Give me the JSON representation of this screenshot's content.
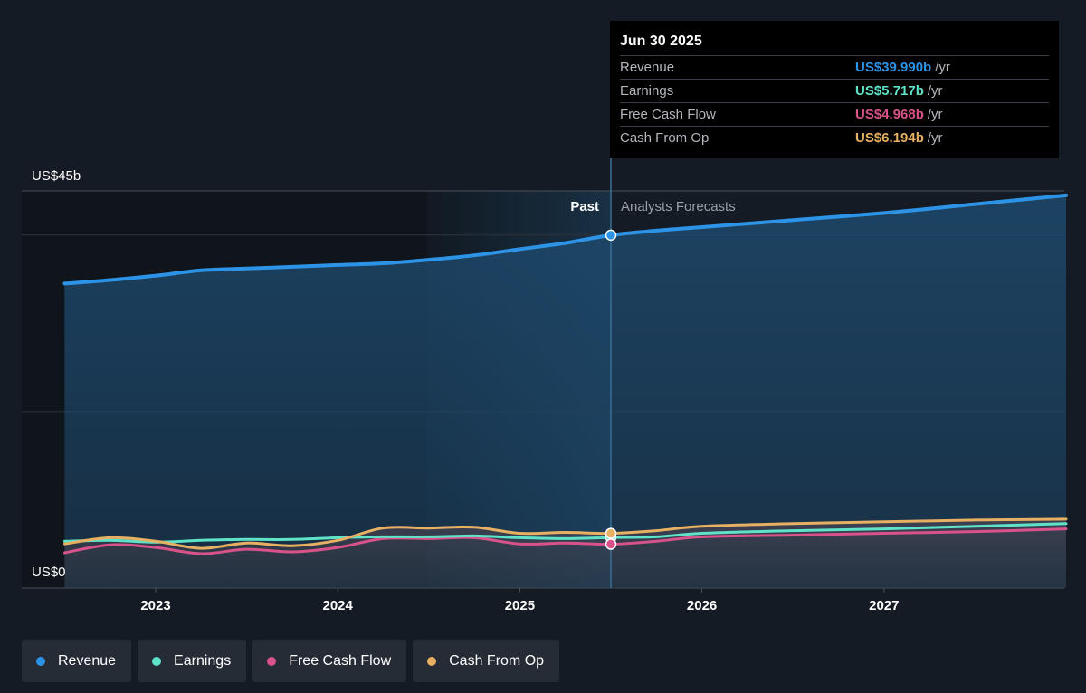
{
  "chart_data": {
    "type": "area",
    "x_unit": "year",
    "y_unit": "US$ billions",
    "ylim": [
      0,
      45
    ],
    "xlim": [
      2022.75,
      2028.0
    ],
    "y_tick_labels": [
      {
        "value": 45,
        "label": "US$45b"
      },
      {
        "value": 0,
        "label": "US$0"
      }
    ],
    "gridlines_y": [
      45,
      40,
      20
    ],
    "x_ticks": [
      2023,
      2024,
      2025,
      2026,
      2027
    ],
    "x_tick_labels": [
      "2023",
      "2024",
      "2025",
      "2026",
      "2027"
    ],
    "divider_x": 2025.5,
    "past_label": "Past",
    "forecast_label": "Analysts Forecasts",
    "series": [
      {
        "name": "Revenue",
        "color": "#2d93e6",
        "points": [
          [
            2022.5,
            34.5
          ],
          [
            2022.75,
            34.9
          ],
          [
            2023.0,
            35.4
          ],
          [
            2023.25,
            36.0
          ],
          [
            2023.5,
            36.2
          ],
          [
            2023.75,
            36.4
          ],
          [
            2024.0,
            36.6
          ],
          [
            2024.25,
            36.8
          ],
          [
            2024.5,
            37.2
          ],
          [
            2024.75,
            37.7
          ],
          [
            2025.0,
            38.4
          ],
          [
            2025.25,
            39.1
          ],
          [
            2025.5,
            39.99
          ],
          [
            2025.75,
            40.5
          ],
          [
            2026.0,
            40.9
          ],
          [
            2026.5,
            41.7
          ],
          [
            2027.0,
            42.5
          ],
          [
            2027.5,
            43.5
          ],
          [
            2028.0,
            44.5
          ]
        ]
      },
      {
        "name": "Earnings",
        "color": "#5fe3c8",
        "points": [
          [
            2022.5,
            5.3
          ],
          [
            2022.75,
            5.4
          ],
          [
            2023.0,
            5.2
          ],
          [
            2023.25,
            5.4
          ],
          [
            2023.5,
            5.5
          ],
          [
            2023.75,
            5.5
          ],
          [
            2024.0,
            5.7
          ],
          [
            2024.25,
            5.8
          ],
          [
            2024.5,
            5.8
          ],
          [
            2024.75,
            5.9
          ],
          [
            2025.0,
            5.7
          ],
          [
            2025.25,
            5.6
          ],
          [
            2025.5,
            5.717
          ],
          [
            2025.75,
            5.8
          ],
          [
            2026.0,
            6.2
          ],
          [
            2026.5,
            6.5
          ],
          [
            2027.0,
            6.7
          ],
          [
            2027.5,
            7.0
          ],
          [
            2028.0,
            7.3
          ]
        ]
      },
      {
        "name": "Free Cash Flow",
        "color": "#d9538a",
        "points": [
          [
            2022.5,
            4.0
          ],
          [
            2022.75,
            4.9
          ],
          [
            2023.0,
            4.6
          ],
          [
            2023.25,
            3.9
          ],
          [
            2023.5,
            4.4
          ],
          [
            2023.75,
            4.1
          ],
          [
            2024.0,
            4.6
          ],
          [
            2024.25,
            5.6
          ],
          [
            2024.5,
            5.6
          ],
          [
            2024.75,
            5.7
          ],
          [
            2025.0,
            5.0
          ],
          [
            2025.25,
            5.1
          ],
          [
            2025.5,
            4.968
          ],
          [
            2025.75,
            5.3
          ],
          [
            2026.0,
            5.8
          ],
          [
            2026.5,
            6.0
          ],
          [
            2027.0,
            6.2
          ],
          [
            2027.5,
            6.4
          ],
          [
            2028.0,
            6.7
          ]
        ]
      },
      {
        "name": "Cash From Op",
        "color": "#e7b062",
        "points": [
          [
            2022.5,
            5.0
          ],
          [
            2022.75,
            5.7
          ],
          [
            2023.0,
            5.3
          ],
          [
            2023.25,
            4.5
          ],
          [
            2023.5,
            5.1
          ],
          [
            2023.75,
            4.8
          ],
          [
            2024.0,
            5.4
          ],
          [
            2024.25,
            6.8
          ],
          [
            2024.5,
            6.8
          ],
          [
            2024.75,
            6.9
          ],
          [
            2025.0,
            6.2
          ],
          [
            2025.25,
            6.3
          ],
          [
            2025.5,
            6.194
          ],
          [
            2025.75,
            6.5
          ],
          [
            2026.0,
            7.0
          ],
          [
            2026.5,
            7.3
          ],
          [
            2027.0,
            7.5
          ],
          [
            2027.5,
            7.7
          ],
          [
            2028.0,
            7.8
          ]
        ]
      }
    ],
    "tooltip": {
      "date": "Jun 30 2025",
      "unit": "/yr",
      "rows": [
        {
          "label": "Revenue",
          "value": "US$39.990b",
          "color": "#2d93e6"
        },
        {
          "label": "Earnings",
          "value": "US$5.717b",
          "color": "#5fe3c8"
        },
        {
          "label": "Free Cash Flow",
          "value": "US$4.968b",
          "color": "#d9538a"
        },
        {
          "label": "Cash From Op",
          "value": "US$6.194b",
          "color": "#e7b062"
        }
      ]
    },
    "legend": [
      {
        "label": "Revenue",
        "color": "#2d93e6"
      },
      {
        "label": "Earnings",
        "color": "#5fe3c8"
      },
      {
        "label": "Free Cash Flow",
        "color": "#d9538a"
      },
      {
        "label": "Cash From Op",
        "color": "#e7b062"
      }
    ]
  }
}
